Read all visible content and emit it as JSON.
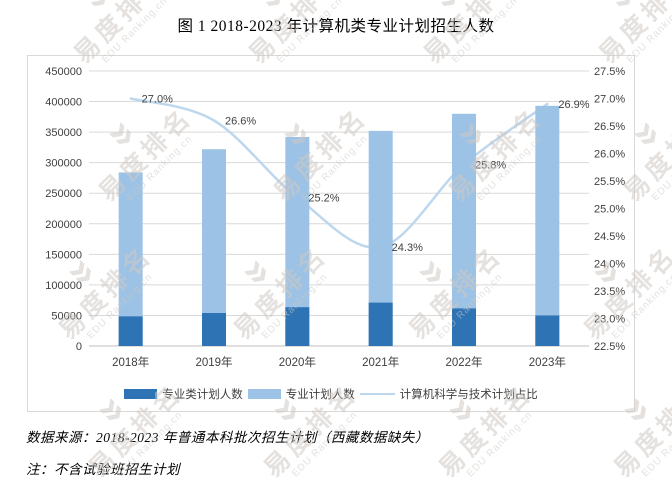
{
  "title": "图 1 2018-2023 年计算机类专业计划招生人数",
  "watermark": {
    "cn": "易度排名",
    "en": "EDU Ranking.cn",
    "chevron": "»"
  },
  "chart_data": {
    "type": "bar",
    "title": "图 1 2018-2023 年计算机类专业计划招生人数",
    "categories": [
      "2018年",
      "2019年",
      "2020年",
      "2021年",
      "2022年",
      "2023年"
    ],
    "series": [
      {
        "name": "专业类计划人数",
        "type": "bar",
        "color": "#2e74b5",
        "values": [
          48500,
          54000,
          63500,
          71000,
          61500,
          50000
        ]
      },
      {
        "name": "专业计划人数",
        "type": "bar",
        "color": "#9cc2e5",
        "values": [
          284000,
          322000,
          342000,
          352000,
          380000,
          393000
        ]
      },
      {
        "name": "计算机科学与技术计划占比",
        "type": "line",
        "color": "#bdd7ee",
        "axis": "right",
        "values": [
          27.0,
          26.6,
          25.2,
          24.3,
          25.8,
          26.9
        ],
        "point_labels": [
          "27.0%",
          "26.6%",
          "25.2%",
          "24.3%",
          "25.8%",
          "26.9%"
        ]
      }
    ],
    "left_axis": {
      "min": 0,
      "max": 450000,
      "step": 50000,
      "ticks": [
        "0",
        "50000",
        "100000",
        "150000",
        "200000",
        "250000",
        "300000",
        "350000",
        "400000",
        "450000"
      ]
    },
    "right_axis": {
      "min": 22.5,
      "max": 27.5,
      "step": 0.5,
      "ticks": [
        "22.5%",
        "23.0%",
        "23.5%",
        "24.0%",
        "24.5%",
        "25.0%",
        "25.5%",
        "26.0%",
        "26.5%",
        "27.0%",
        "27.5%"
      ]
    },
    "grid": true,
    "legend_position": "bottom",
    "colors": {
      "grid": "#d9d9d9",
      "axis_line": "#bfbfbf",
      "tick_text": "#404040",
      "label_text": "#404040"
    }
  },
  "footnotes": {
    "source": "数据来源：2018-2023 年普通本科批次招生计划（西藏数据缺失）",
    "note": "注：不含试验班招生计划"
  }
}
